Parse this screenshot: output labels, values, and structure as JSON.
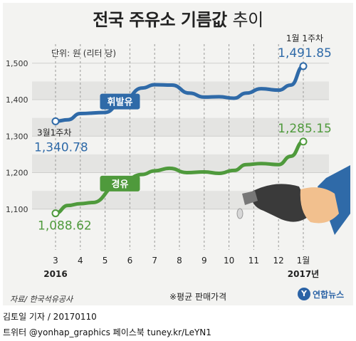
{
  "title_main": "전국 주유소 기름값",
  "title_suffix": "추이",
  "unit_label": "단위: 원 (리터 당)",
  "chart_data": {
    "type": "line",
    "title": "전국 주유소 기름값 추이",
    "categories": [
      "3",
      "4",
      "5",
      "6",
      "7",
      "8",
      "9",
      "10",
      "11",
      "12",
      "1월"
    ],
    "x_year_labels": {
      "start": "2016",
      "end": "2017년"
    },
    "ylim": [
      1000,
      1560
    ],
    "yticks": [
      "1,100",
      "1,200",
      "1,300",
      "1,400",
      "1,500"
    ],
    "grid": true,
    "series": [
      {
        "name": "휘발유",
        "color": "#2f6aa8",
        "points": [
          [
            0,
            1340.78
          ],
          [
            0.5,
            1345
          ],
          [
            1,
            1362
          ],
          [
            2,
            1365
          ],
          [
            2.7,
            1395
          ],
          [
            3.5,
            1432
          ],
          [
            4,
            1441
          ],
          [
            4.7,
            1440
          ],
          [
            5.4,
            1418
          ],
          [
            6,
            1407
          ],
          [
            6.6,
            1408
          ],
          [
            7.2,
            1404
          ],
          [
            7.7,
            1418
          ],
          [
            8.3,
            1430
          ],
          [
            9,
            1426
          ],
          [
            9.5,
            1440
          ],
          [
            10,
            1491.85
          ]
        ],
        "start_label": "3월1주차",
        "start_value": "1,340.78",
        "end_label": "1월 1주차",
        "end_value": "1,491.85",
        "marker_x": 2.6
      },
      {
        "name": "경유",
        "color": "#4f9a3c",
        "points": [
          [
            0,
            1088.62
          ],
          [
            0.5,
            1110
          ],
          [
            1,
            1115
          ],
          [
            1.5,
            1118
          ],
          [
            2.5,
            1165
          ],
          [
            3.5,
            1195
          ],
          [
            4,
            1205
          ],
          [
            4.6,
            1212
          ],
          [
            5.3,
            1200
          ],
          [
            6,
            1202
          ],
          [
            6.6,
            1198
          ],
          [
            7.2,
            1206
          ],
          [
            7.7,
            1222
          ],
          [
            8.3,
            1225
          ],
          [
            9,
            1222
          ],
          [
            9.5,
            1245
          ],
          [
            10,
            1285.15
          ]
        ],
        "start_value": "1,088.62",
        "end_value": "1,285.15",
        "marker_x": 2.6
      }
    ]
  },
  "footer": {
    "source": "자료/ 한국석유공사",
    "note": "※평균 판매가격",
    "logo_text": "연합뉴스",
    "logo_mark": "Y"
  },
  "credit": {
    "line1": "김토일 기자 / 20170110",
    "line2": "트위터 @yonhap_graphics  페이스북 tuney.kr/LeYN1"
  }
}
